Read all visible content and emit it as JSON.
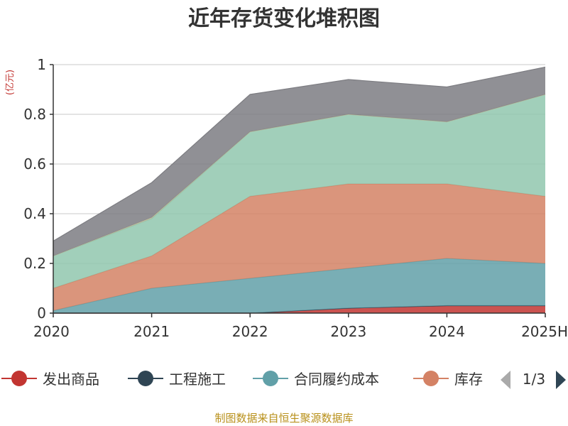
{
  "title": "近年存货变化堆积图",
  "source": "制图数据来自恒生聚源数据库",
  "chart_data": {
    "type": "area",
    "stacked": true,
    "title": "近年存货变化堆积图",
    "unit_label": "(亿元)",
    "categories": [
      "2020",
      "2021",
      "2022",
      "2023",
      "2024",
      "2025H"
    ],
    "ylim": [
      0,
      1
    ],
    "yticks": [
      "0",
      "0.2",
      "0.4",
      "0.6",
      "0.8",
      "1"
    ],
    "grid": true,
    "legend_position": "bottom",
    "series": [
      {
        "name": "发出商品",
        "color": "#c23531",
        "values": [
          0,
          0,
          0,
          0.02,
          0.03,
          0.03
        ],
        "visible_in_legend": true
      },
      {
        "name": "工程施工",
        "color": "#2f4554",
        "values": [
          0,
          0,
          0,
          0,
          0,
          0
        ],
        "visible_in_legend": true
      },
      {
        "name": "合同履约成本",
        "color": "#61a0a8",
        "values": [
          0.01,
          0.1,
          0.14,
          0.16,
          0.19,
          0.17
        ],
        "visible_in_legend": true
      },
      {
        "name": "库存",
        "color": "#d48265",
        "values": [
          0.09,
          0.13,
          0.33,
          0.34,
          0.3,
          0.27
        ],
        "visible_in_legend": true
      },
      {
        "name": "",
        "color": "#91c7ae",
        "values": [
          0.13,
          0.15,
          0.26,
          0.28,
          0.25,
          0.41
        ],
        "visible_in_legend": false
      },
      {
        "name": "",
        "color": "#b9b89a",
        "values": [
          0,
          0.005,
          0,
          0,
          0,
          0
        ],
        "visible_in_legend": false
      },
      {
        "name": "",
        "color": "#7d7d82",
        "values": [
          0.06,
          0.14,
          0.15,
          0.14,
          0.14,
          0.11
        ],
        "visible_in_legend": false
      }
    ],
    "legend_page": "1/3"
  }
}
